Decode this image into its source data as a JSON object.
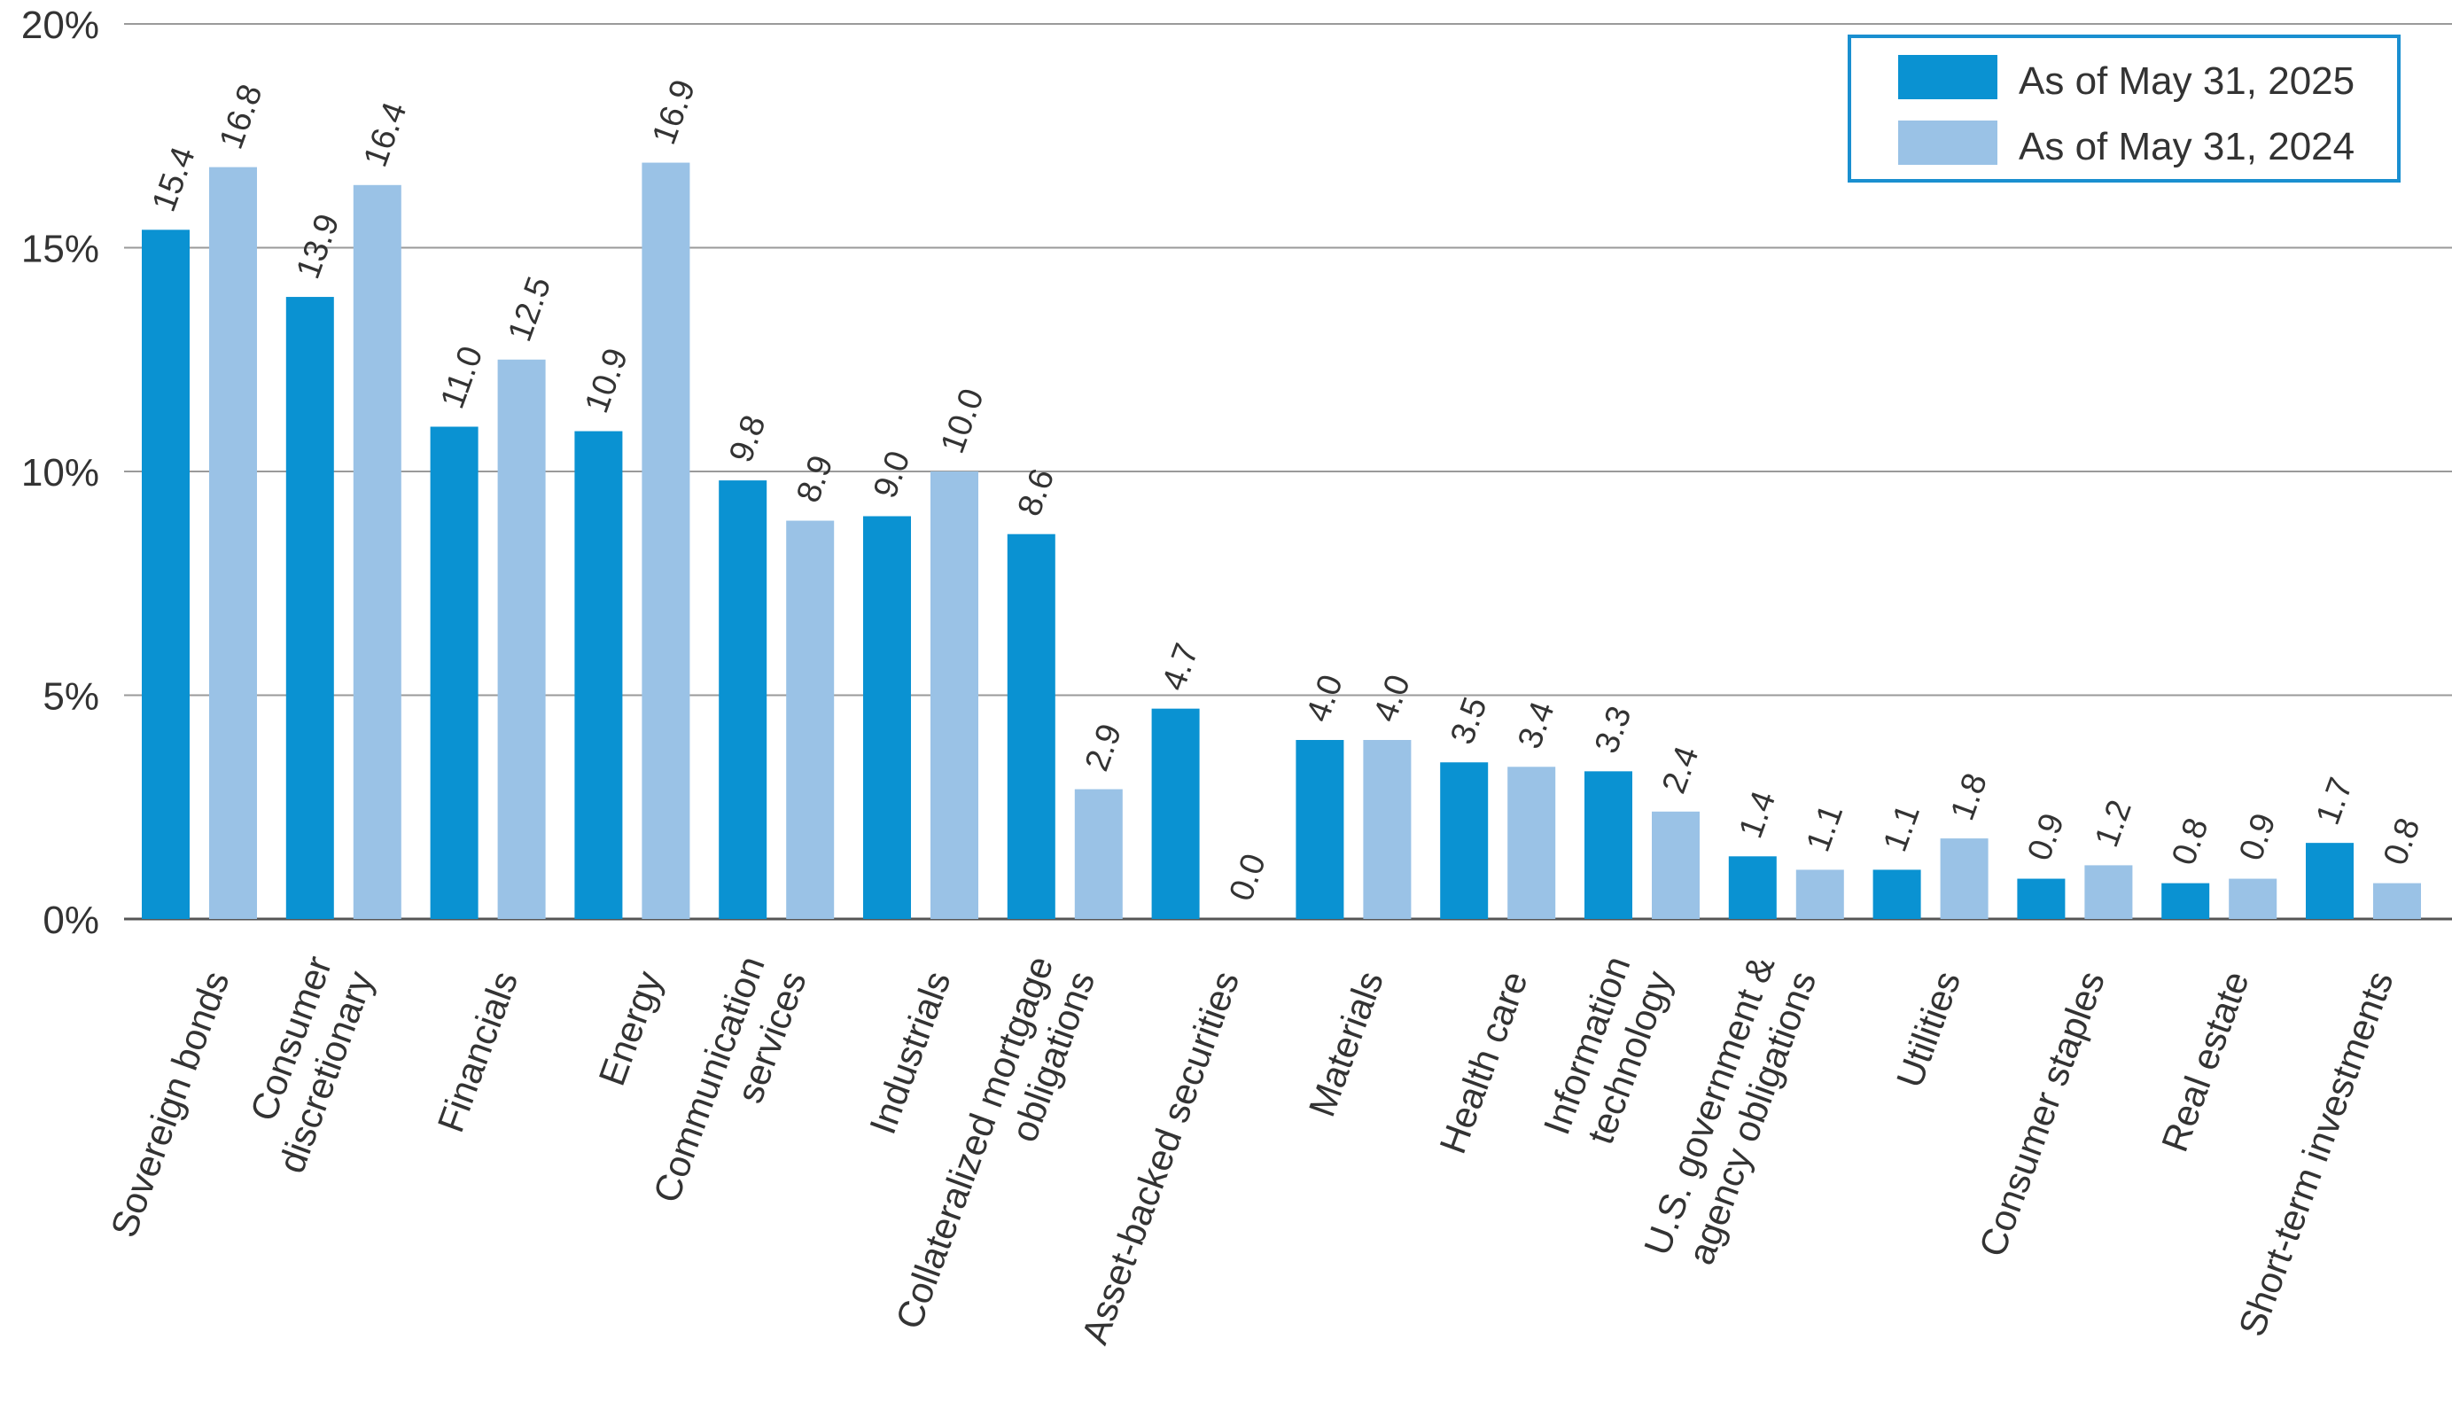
{
  "chart_data": {
    "type": "bar",
    "categories": [
      [
        "Sovereign bonds"
      ],
      [
        "Consumer",
        "discretionary"
      ],
      [
        "Financials"
      ],
      [
        "Energy"
      ],
      [
        "Communication",
        "services"
      ],
      [
        "Industrials"
      ],
      [
        "Collateralized mortgage",
        "obligations"
      ],
      [
        "Asset-backed securities"
      ],
      [
        "Materials"
      ],
      [
        "Health care"
      ],
      [
        "Information",
        "technology"
      ],
      [
        "U.S. government &",
        "agency obligations"
      ],
      [
        "Utilities"
      ],
      [
        "Consumer staples"
      ],
      [
        "Real estate"
      ],
      [
        "Short-term investments"
      ]
    ],
    "series": [
      {
        "name": "As of May 31, 2025",
        "color": "#0a92d2",
        "values": [
          15.4,
          13.9,
          11.0,
          10.9,
          9.8,
          9.0,
          8.6,
          4.7,
          4.0,
          3.5,
          3.3,
          1.4,
          1.1,
          0.9,
          0.8,
          1.7
        ],
        "labels": [
          "15.4",
          "13.9",
          "11.0",
          "10.9",
          "9.8",
          "9.0",
          "8.6",
          "4.7",
          "4.0",
          "3.5",
          "3.3",
          "1.4",
          "1.1",
          "0.9",
          "0.8",
          "1.7"
        ]
      },
      {
        "name": "As of May 31, 2024",
        "color": "#9ac2e6",
        "values": [
          16.8,
          16.4,
          12.5,
          16.9,
          8.9,
          10.0,
          2.9,
          0.0,
          4.0,
          3.4,
          2.4,
          1.1,
          1.8,
          1.2,
          0.9,
          0.8
        ],
        "labels": [
          "16.8",
          "16.4",
          "12.5",
          "16.9",
          "8.9",
          "10.0",
          "2.9",
          "0.0",
          "4.0",
          "3.4",
          "2.4",
          "1.1",
          "1.8",
          "1.2",
          "0.9",
          "0.8"
        ]
      }
    ],
    "yticks": [
      0,
      5,
      10,
      15,
      20
    ],
    "ytick_labels": [
      "0%",
      "5%",
      "10%",
      "15%",
      "20%"
    ],
    "ylim": [
      0,
      20
    ],
    "grid": true,
    "legend_position": "top-right",
    "legend_border_color": "#1a8fd0",
    "title": "",
    "xlabel": "",
    "ylabel": ""
  }
}
